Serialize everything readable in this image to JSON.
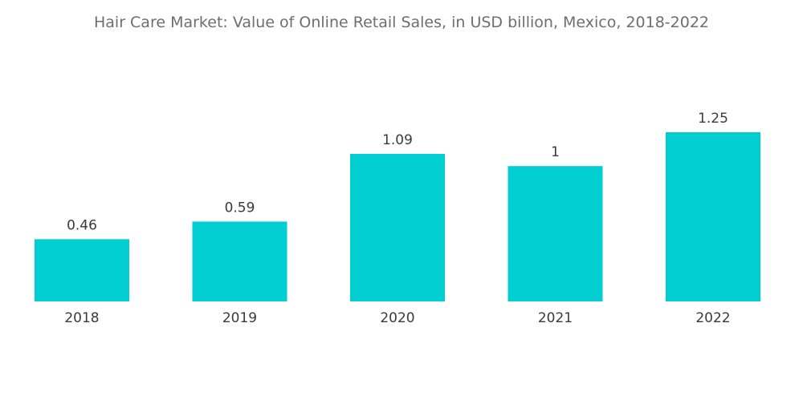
{
  "chart_data": {
    "type": "bar",
    "title": "Hair Care Market: Value of Online Retail Sales, in USD billion, Mexico, 2018-2022",
    "categories": [
      "2018",
      "2019",
      "2020",
      "2021",
      "2022"
    ],
    "values": [
      0.46,
      0.59,
      1.09,
      1,
      1.25
    ],
    "value_labels": [
      "0.46",
      "0.59",
      "1.09",
      "1",
      "1.25"
    ],
    "xlabel": "",
    "ylabel": "",
    "ylim": [
      0,
      1.25
    ],
    "grid": false,
    "legend": "none",
    "bar_color": "#00ced1"
  }
}
